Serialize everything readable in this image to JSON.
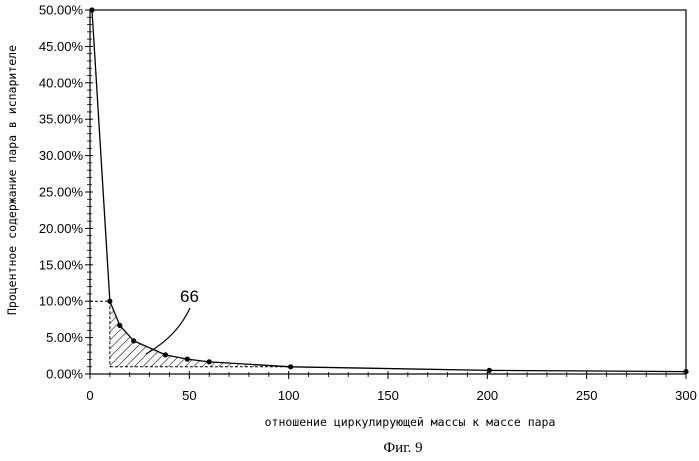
{
  "chart_data": {
    "type": "line",
    "title": "",
    "xlabel": "отношение циркулирующей массы к массе пара",
    "ylabel": "Процентное содержание пара в испарителе",
    "xlim": [
      0,
      300
    ],
    "ylim": [
      0,
      0.5
    ],
    "x_ticks": [
      0,
      50,
      100,
      150,
      200,
      250,
      300
    ],
    "y_ticks": [
      0,
      0.05,
      0.1,
      0.15,
      0.2,
      0.25,
      0.3,
      0.35,
      0.4,
      0.45,
      0.5
    ],
    "x_tick_labels": [
      "0",
      "50",
      "100",
      "150",
      "200",
      "250",
      "300"
    ],
    "y_tick_labels": [
      "0.00%",
      "5.00%",
      "10.00%",
      "15.00%",
      "20.00%",
      "25.00%",
      "30.00%",
      "35.00%",
      "40.00%",
      "45.00%",
      "50.00%"
    ],
    "grid": false,
    "series": [
      {
        "x": [
          1,
          10,
          15,
          22,
          38,
          49,
          60,
          101,
          201,
          300
        ],
        "y": [
          0.5,
          0.1,
          0.0667,
          0.0455,
          0.0263,
          0.0204,
          0.0167,
          0.0099,
          0.005,
          0.0033
        ]
      }
    ],
    "shaded_region": {
      "x_from": 10,
      "x_to": 101,
      "pattern": "hatch"
    },
    "reference_lines": {
      "y": 0.1,
      "x": 10,
      "baseline_y": 0.01
    },
    "annotation": {
      "text": "66"
    }
  },
  "caption": "Фиг. 9"
}
